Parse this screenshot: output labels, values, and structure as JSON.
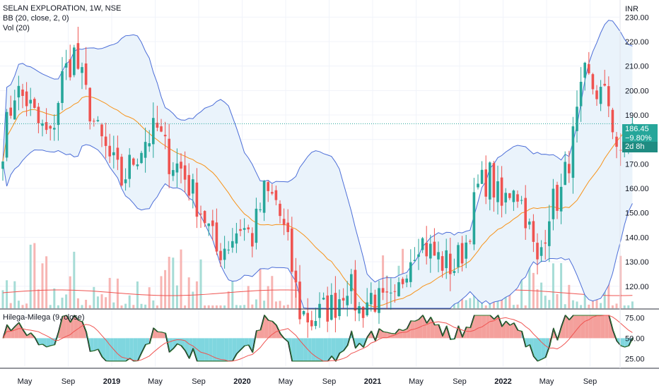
{
  "header": {
    "symbol_line": "SELAN EXPLORATION, 1W, NSE",
    "bb_line": "BB (20, close, 2, 0)",
    "vol_line": "Vol (20)",
    "osc_line": "Hilega-Milega (9, close)"
  },
  "price_tags": {
    "last": "186.45",
    "change": "−9.80%",
    "countdown": "2d 8h"
  },
  "colors": {
    "up": "#26a69a",
    "down": "#ef5350",
    "band": "#4c6ed8",
    "basis": "#f7931a",
    "band_fill": "#eaf3fb",
    "osc_pos": "#f4a09c",
    "osc_neg": "#7fd6df",
    "osc_line": "#2e7d32"
  },
  "chart_data": [
    {
      "type": "candlestick",
      "title": "SELAN EXPLORATION, 1W, NSE",
      "currency_label": "INR",
      "ylim": [
        111,
        237
      ],
      "y_ticks": [
        120,
        130,
        140,
        150,
        160,
        170,
        180,
        190,
        200,
        210,
        220,
        230
      ],
      "x_ticks": [
        "May",
        "Sep",
        "2019",
        "May",
        "Sep",
        "2020",
        "May",
        "Sep",
        "2021",
        "May",
        "Sep",
        "2022",
        "May",
        "Sep"
      ],
      "last_price": 186.45,
      "series": {
        "close_points": [
          [
            "2018-03",
            178
          ],
          [
            "2018-04",
            200
          ],
          [
            "2018-05",
            196
          ],
          [
            "2018-06",
            186
          ],
          [
            "2018-07",
            180
          ],
          [
            "2018-08",
            205
          ],
          [
            "2018-09",
            215
          ],
          [
            "2018-10",
            198
          ],
          [
            "2018-11",
            182
          ],
          [
            "2018-12",
            172
          ],
          [
            "2019-01",
            163
          ],
          [
            "2019-02",
            172
          ],
          [
            "2019-03",
            180
          ],
          [
            "2019-04",
            184
          ],
          [
            "2019-05",
            172
          ],
          [
            "2019-06",
            168
          ],
          [
            "2019-07",
            158
          ],
          [
            "2019-08",
            148
          ],
          [
            "2019-09",
            134
          ],
          [
            "2019-10",
            138
          ],
          [
            "2019-11",
            145
          ],
          [
            "2019-12",
            140
          ],
          [
            "2020-01",
            158
          ],
          [
            "2020-02",
            155
          ],
          [
            "2020-03",
            136
          ],
          [
            "2020-04",
            110
          ],
          [
            "2020-05",
            106
          ],
          [
            "2020-06",
            110
          ],
          [
            "2020-07",
            113
          ],
          [
            "2020-08",
            122
          ],
          [
            "2020-09",
            110
          ],
          [
            "2020-10",
            116
          ],
          [
            "2020-11",
            112
          ],
          [
            "2020-12",
            112
          ],
          [
            "2021-01",
            130
          ],
          [
            "2021-02",
            140
          ],
          [
            "2021-03",
            134
          ],
          [
            "2021-04",
            130
          ],
          [
            "2021-05",
            128
          ],
          [
            "2021-06",
            138
          ],
          [
            "2021-07",
            160
          ],
          [
            "2021-08",
            165
          ],
          [
            "2021-09",
            152
          ],
          [
            "2021-10",
            163
          ],
          [
            "2021-11",
            150
          ],
          [
            "2021-12",
            128
          ],
          [
            "2022-01",
            152
          ],
          [
            "2022-02",
            158
          ],
          [
            "2022-03",
            180
          ],
          [
            "2022-04",
            205
          ],
          [
            "2022-05",
            200
          ],
          [
            "2022-06",
            195
          ],
          [
            "2022-07",
            170
          ],
          [
            "2022-08",
            186.45
          ]
        ]
      },
      "bollinger_bands": {
        "period": 20,
        "std": 2
      },
      "volume_ma_period": 20
    },
    {
      "type": "oscillator",
      "title": "Hilega-Milega (9, close)",
      "ylim": [
        15,
        84
      ],
      "y_ticks": [
        25,
        50,
        75
      ],
      "midline": 50
    }
  ]
}
